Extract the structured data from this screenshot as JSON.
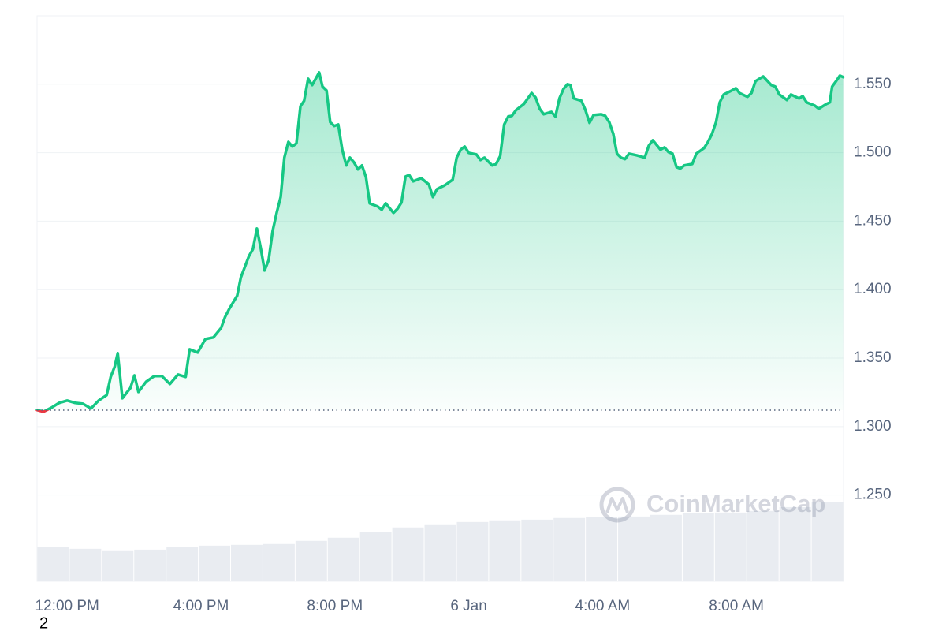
{
  "chart_data": {
    "type": "line",
    "x": [
      -0.9,
      -0.71,
      -0.47,
      -0.24,
      0,
      0.24,
      0.47,
      0.71,
      0.94,
      1.18,
      1.3,
      1.42,
      1.51,
      1.65,
      1.89,
      2.01,
      2.13,
      2.36,
      2.6,
      2.83,
      3.07,
      3.31,
      3.54,
      3.66,
      3.9,
      4.13,
      4.37,
      4.6,
      4.72,
      4.84,
      5.08,
      5.19,
      5.43,
      5.55,
      5.67,
      5.79,
      5.9,
      6.02,
      6.14,
      6.26,
      6.38,
      6.49,
      6.61,
      6.73,
      6.85,
      6.97,
      7.08,
      7.2,
      7.32,
      7.53,
      7.63,
      7.75,
      7.86,
      7.98,
      8.1,
      8.22,
      8.34,
      8.45,
      8.57,
      8.69,
      8.81,
      8.93,
      9.04,
      9.28,
      9.4,
      9.52,
      9.75,
      9.87,
      9.99,
      10.11,
      10.22,
      10.34,
      10.58,
      10.81,
      10.93,
      11.05,
      11.29,
      11.52,
      11.64,
      11.76,
      11.88,
      12,
      12.23,
      12.35,
      12.47,
      12.7,
      12.82,
      12.94,
      13.06,
      13.18,
      13.29,
      13.41,
      13.65,
      13.88,
      14,
      14.12,
      14.24,
      14.47,
      14.59,
      14.71,
      14.83,
      14.95,
      15.04,
      15.14,
      15.37,
      15.49,
      15.61,
      15.73,
      15.96,
      16.08,
      16.2,
      16.32,
      16.43,
      16.55,
      16.67,
      16.79,
      17.02,
      17.26,
      17.38,
      17.5,
      17.73,
      17.85,
      17.97,
      18.09,
      18.21,
      18.32,
      18.44,
      18.68,
      18.8,
      19.03,
      19.15,
      19.27,
      19.39,
      19.5,
      19.62,
      19.86,
      19.98,
      20.09,
      20.33,
      20.45,
      20.57,
      20.8,
      21.04,
      21.16,
      21.28,
      21.51,
      21.63,
      21.87,
      21.98,
      22.1,
      22.34,
      22.46,
      22.69,
      22.79,
      22.86,
      22.98,
      23.09,
      23.19
    ],
    "series": [
      {
        "color": "#16c784",
        "negative_color": "#ea3943",
        "values": [
          1.3121,
          1.3109,
          1.3138,
          1.3173,
          1.319,
          1.3173,
          1.3167,
          1.3132,
          1.319,
          1.323,
          1.3363,
          1.3438,
          1.3536,
          1.3207,
          1.3282,
          1.3374,
          1.3253,
          1.3328,
          1.3369,
          1.3369,
          1.3311,
          1.338,
          1.3363,
          1.3564,
          1.3541,
          1.3639,
          1.3651,
          1.372,
          1.3801,
          1.3858,
          1.3956,
          1.4089,
          1.4244,
          1.4296,
          1.4446,
          1.4296,
          1.414,
          1.4215,
          1.4428,
          1.4561,
          1.4676,
          1.4964,
          1.5079,
          1.5045,
          1.5068,
          1.5339,
          1.5379,
          1.554,
          1.5494,
          1.5586,
          1.5483,
          1.5454,
          1.5223,
          1.5195,
          1.5206,
          1.5022,
          1.4907,
          1.4964,
          1.493,
          1.4878,
          1.4907,
          1.482,
          1.463,
          1.4607,
          1.4584,
          1.463,
          1.4561,
          1.459,
          1.4636,
          1.4826,
          1.4837,
          1.4791,
          1.4814,
          1.4768,
          1.4676,
          1.4734,
          1.4763,
          1.4803,
          1.4964,
          1.5022,
          1.5045,
          1.4999,
          1.4987,
          1.4947,
          1.4964,
          1.4907,
          1.4918,
          1.4976,
          1.5206,
          1.5264,
          1.5269,
          1.531,
          1.5356,
          1.5436,
          1.5402,
          1.5321,
          1.5281,
          1.5298,
          1.5264,
          1.5396,
          1.5465,
          1.55,
          1.5494,
          1.5396,
          1.5379,
          1.531,
          1.5218,
          1.5275,
          1.5281,
          1.5269,
          1.5223,
          1.5137,
          1.4993,
          1.4964,
          1.4953,
          1.4993,
          1.4981,
          1.4964,
          1.5051,
          1.5091,
          1.5022,
          1.5039,
          1.5004,
          1.4993,
          1.4895,
          1.4884,
          1.4907,
          1.4918,
          1.4993,
          1.5033,
          1.5079,
          1.5137,
          1.5223,
          1.5367,
          1.5425,
          1.5454,
          1.5471,
          1.5436,
          1.5408,
          1.5436,
          1.5523,
          1.5557,
          1.5494,
          1.5483,
          1.5425,
          1.5385,
          1.5425,
          1.5396,
          1.5413,
          1.5367,
          1.5344,
          1.5321,
          1.5356,
          1.5367,
          1.5483,
          1.5523,
          1.5563,
          1.5552
        ]
      }
    ],
    "reference": 1.312,
    "volume": {
      "color": "#e9ecf1",
      "values": [
        1.2119,
        1.2107,
        1.2096,
        1.2101,
        1.2119,
        1.213,
        1.2136,
        1.2142,
        1.2165,
        1.2188,
        1.2228,
        1.2263,
        1.2286,
        1.2303,
        1.2315,
        1.232,
        1.2332,
        1.2338,
        1.2343,
        1.2355,
        1.2366,
        1.2372,
        1.2384,
        1.2412,
        1.2447
      ]
    },
    "xlim": [
      -0.9,
      23.2
    ],
    "xticks": [
      {
        "value": 0,
        "label": "12:00 PM"
      },
      {
        "value": 4,
        "label": "4:00 PM"
      },
      {
        "value": 8,
        "label": "8:00 PM"
      },
      {
        "value": 12,
        "label": "6 Jan"
      },
      {
        "value": 16,
        "label": "4:00 AM"
      },
      {
        "value": 20,
        "label": "8:00 AM"
      }
    ],
    "ylim": [
      1.187,
      1.6
    ],
    "yticks": [
      {
        "value": 1.25,
        "label": "1.250"
      },
      {
        "value": 1.3,
        "label": "1.300"
      },
      {
        "value": 1.35,
        "label": "1.350"
      },
      {
        "value": 1.4,
        "label": "1.400"
      },
      {
        "value": 1.45,
        "label": "1.450"
      },
      {
        "value": 1.5,
        "label": "1.500"
      },
      {
        "value": 1.55,
        "label": "1.550"
      }
    ],
    "grid": true,
    "watermark": "CoinMarketCap",
    "footnote": "2"
  }
}
